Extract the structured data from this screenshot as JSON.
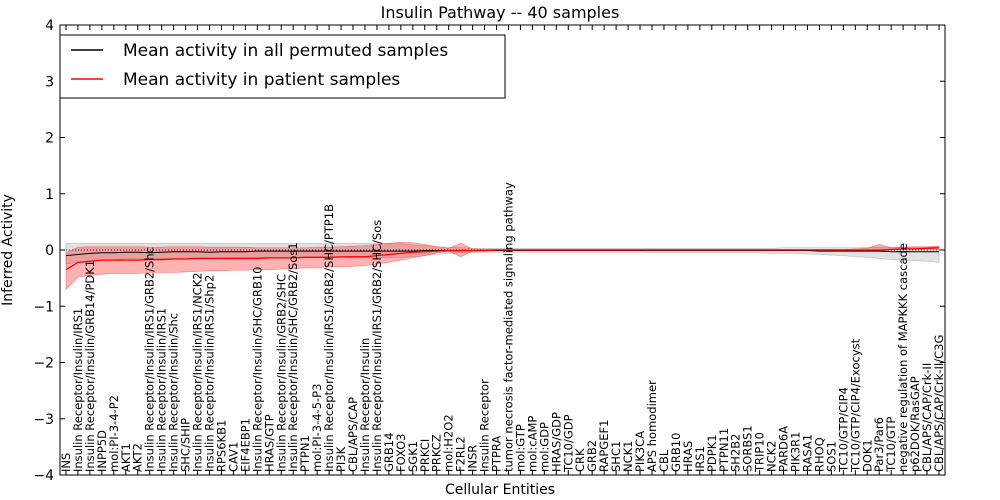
{
  "chart_data": {
    "type": "line",
    "title": "Insulin Pathway -- 40 samples",
    "xlabel": "Cellular Entities",
    "ylabel": "Inferred Activity",
    "ylim": [
      -4,
      4
    ],
    "yticks": [
      "4",
      "3",
      "2",
      "1",
      "0",
      "−1",
      "−2",
      "−3",
      "−4"
    ],
    "ytick_values": [
      4,
      3,
      2,
      1,
      0,
      -1,
      -2,
      -3,
      -4
    ],
    "legend": {
      "placement": "top-left",
      "entries": [
        {
          "label": "Mean activity in all permuted samples",
          "color": "#000000"
        },
        {
          "label": "Mean activity in patient samples",
          "color": "#ff0000"
        }
      ]
    },
    "categories": [
      "INS",
      "Insulin Receptor/Insulin/IRS1",
      "Insulin Receptor/Insulin/GRB14/PDK1",
      "INPP5D",
      "mol:PI-3-4-P2",
      "AKT1",
      "AKT2",
      "Insulin Receptor/Insulin/IRS1/GRB2/Shc",
      "Insulin Receptor/Insulin/IRS1",
      "Insulin Receptor/Insulin/Shc",
      "SHC/SHIP",
      "Insulin Receptor/Insulin/IRS1/NCK2",
      "Insulin Receptor/Insulin/IRS1/Shp2",
      "RPS6KB1",
      "CAV1",
      "EIF4EBP1",
      "Insulin Receptor/Insulin/SHC/GRB10",
      "HRAS/GTP",
      "Insulin Receptor/Insulin/GRB2/SHC",
      "Insulin Receptor/Insulin/SHC/GRB2/Sos1",
      "PTPN1",
      "mol:PI-3-4-5-P3",
      "Insulin Receptor/Insulin/IRS1/GRB2/SHC/PTP1B",
      "PI3K",
      "CBL/APS/CAP",
      "Insulin Receptor/Insulin",
      "Insulin Receptor/Insulin/IRS1/GRB2/SHC/Sos",
      "GRB14",
      "FOXO3",
      "SGK1",
      "PRKCI",
      "PRKCZ",
      "mol:H2O2",
      "F2RL2",
      "INSR",
      "Insulin Receptor",
      "PTPRA",
      "tumor necrosis factor-mediated signaling pathway",
      "mol:GTP",
      "mol:cAMP",
      "mol:GDP",
      "HRAS/GDP",
      "TC10/GDP",
      "CRK",
      "GRB2",
      "RAPGEF1",
      "SHC1",
      "NCK1",
      "PIK3CA",
      "APS homodimer",
      "CBL",
      "GRB10",
      "HRAS",
      "IRS1",
      "PDPK1",
      "PTPN11",
      "SH2B2",
      "SORBS1",
      "TRIP10",
      "NCK2",
      "PARD6A",
      "PIK3R1",
      "RASA1",
      "RHOQ",
      "SOS1",
      "TC10/GTP/CIP4",
      "TC10/GTP/CIP4/Exocyst",
      "DOK1",
      "Par3/Par6",
      "TC10/GTP",
      "negative regulation of MAPKKK cascade",
      "p62DOK/RasGAP",
      "CBL/APS/CAP/Crk-II",
      "CBL/APS/CAP/Crk-II/C3G"
    ],
    "series": [
      {
        "name": "Mean activity in all permuted samples",
        "color": "#000000",
        "values": [
          -0.1,
          -0.08,
          -0.06,
          -0.05,
          -0.05,
          -0.04,
          -0.04,
          -0.05,
          -0.04,
          -0.03,
          -0.03,
          -0.03,
          -0.04,
          -0.03,
          -0.03,
          -0.03,
          -0.02,
          -0.02,
          -0.02,
          -0.02,
          -0.02,
          -0.02,
          -0.02,
          -0.02,
          -0.02,
          -0.02,
          -0.02,
          -0.02,
          -0.02,
          -0.02,
          -0.01,
          -0.01,
          -0.01,
          -0.01,
          -0.01,
          -0.01,
          -0.01,
          -0.01,
          -0.01,
          -0.01,
          -0.01,
          -0.01,
          -0.01,
          -0.01,
          -0.01,
          -0.01,
          -0.01,
          -0.01,
          -0.01,
          -0.01,
          -0.01,
          -0.01,
          -0.01,
          -0.01,
          -0.01,
          -0.01,
          -0.01,
          -0.01,
          -0.01,
          -0.01,
          -0.01,
          -0.01,
          -0.01,
          -0.02,
          -0.02,
          -0.02,
          -0.02,
          -0.02,
          -0.02,
          -0.03,
          -0.03,
          -0.03,
          -0.03,
          -0.03
        ],
        "band_low": [
          -0.25,
          -0.22,
          -0.2,
          -0.18,
          -0.17,
          -0.16,
          -0.16,
          -0.16,
          -0.15,
          -0.15,
          -0.15,
          -0.15,
          -0.15,
          -0.14,
          -0.14,
          -0.14,
          -0.13,
          -0.13,
          -0.13,
          -0.13,
          -0.13,
          -0.13,
          -0.13,
          -0.13,
          -0.14,
          -0.14,
          -0.14,
          -0.14,
          -0.13,
          -0.12,
          -0.1,
          -0.08,
          -0.06,
          -0.05,
          -0.05,
          -0.04,
          -0.04,
          -0.04,
          -0.04,
          -0.04,
          -0.04,
          -0.04,
          -0.04,
          -0.04,
          -0.04,
          -0.04,
          -0.04,
          -0.04,
          -0.04,
          -0.05,
          -0.05,
          -0.05,
          -0.05,
          -0.05,
          -0.05,
          -0.05,
          -0.05,
          -0.05,
          -0.05,
          -0.06,
          -0.06,
          -0.06,
          -0.07,
          -0.08,
          -0.09,
          -0.1,
          -0.12,
          -0.13,
          -0.15,
          -0.17,
          -0.18,
          -0.19,
          -0.2,
          -0.22
        ],
        "band_high": [
          0.12,
          0.12,
          0.12,
          0.12,
          0.12,
          0.12,
          0.12,
          0.12,
          0.12,
          0.12,
          0.12,
          0.12,
          0.12,
          0.12,
          0.12,
          0.12,
          0.12,
          0.12,
          0.12,
          0.12,
          0.12,
          0.12,
          0.12,
          0.12,
          0.12,
          0.12,
          0.12,
          0.12,
          0.11,
          0.09,
          0.08,
          0.06,
          0.05,
          0.04,
          0.03,
          0.03,
          0.03,
          0.03,
          0.03,
          0.03,
          0.03,
          0.03,
          0.03,
          0.03,
          0.03,
          0.03,
          0.03,
          0.03,
          0.03,
          0.03,
          0.03,
          0.03,
          0.03,
          0.03,
          0.03,
          0.03,
          0.03,
          0.03,
          0.03,
          0.03,
          0.04,
          0.04,
          0.04,
          0.04,
          0.04,
          0.04,
          0.04,
          0.05,
          0.05,
          0.05,
          0.05,
          0.05,
          0.05,
          0.05
        ]
      },
      {
        "name": "Mean activity in patient samples",
        "color": "#ff0000",
        "values": [
          -0.35,
          -0.22,
          -0.2,
          -0.18,
          -0.18,
          -0.18,
          -0.18,
          -0.17,
          -0.17,
          -0.16,
          -0.16,
          -0.15,
          -0.15,
          -0.15,
          -0.15,
          -0.15,
          -0.15,
          -0.14,
          -0.14,
          -0.14,
          -0.13,
          -0.13,
          -0.13,
          -0.12,
          -0.12,
          -0.12,
          -0.1,
          -0.08,
          -0.06,
          -0.04,
          -0.03,
          -0.02,
          -0.01,
          -0.01,
          -0.01,
          -0.01,
          0,
          0,
          0,
          0,
          0,
          0,
          0,
          0,
          0,
          0,
          0,
          0,
          0,
          0,
          0,
          0,
          0,
          0,
          0,
          0,
          0,
          0,
          0,
          0,
          0,
          0,
          0,
          0,
          0,
          0,
          0,
          0,
          0,
          0.01,
          0.02,
          0.02,
          0.03,
          0.04
        ],
        "band_low": [
          -0.7,
          -0.48,
          -0.45,
          -0.43,
          -0.42,
          -0.42,
          -0.42,
          -0.4,
          -0.4,
          -0.4,
          -0.39,
          -0.38,
          -0.37,
          -0.37,
          -0.36,
          -0.36,
          -0.35,
          -0.35,
          -0.34,
          -0.33,
          -0.32,
          -0.32,
          -0.3,
          -0.3,
          -0.29,
          -0.28,
          -0.25,
          -0.22,
          -0.18,
          -0.14,
          -0.1,
          -0.05,
          -0.02,
          -0.12,
          -0.02,
          -0.02,
          -0.01,
          -0.01,
          -0.01,
          -0.01,
          -0.01,
          -0.01,
          -0.01,
          -0.01,
          -0.01,
          -0.01,
          -0.01,
          -0.01,
          -0.01,
          -0.01,
          -0.01,
          -0.01,
          -0.01,
          -0.01,
          -0.01,
          -0.01,
          -0.01,
          -0.01,
          -0.01,
          -0.01,
          -0.01,
          -0.01,
          -0.01,
          -0.01,
          -0.01,
          -0.01,
          -0.01,
          -0.01,
          -0.02,
          0,
          0.01,
          0.01,
          0.02,
          0.02
        ],
        "band_high": [
          -0.05,
          0.05,
          0.06,
          0.06,
          0.06,
          0.06,
          0.06,
          0.05,
          0.05,
          0.06,
          0.06,
          0.06,
          0.05,
          0.05,
          0.05,
          0.05,
          0.04,
          0.04,
          0.04,
          0.04,
          0.04,
          0.05,
          0.05,
          0.06,
          0.07,
          0.08,
          0.1,
          0.12,
          0.14,
          0.13,
          0.1,
          0.06,
          0.03,
          0.12,
          0.02,
          0.01,
          0.01,
          0.01,
          0.01,
          0.01,
          0.01,
          0.01,
          0.01,
          0.01,
          0.01,
          0.01,
          0.01,
          0.01,
          0.01,
          0.01,
          0.01,
          0.01,
          0.01,
          0.01,
          0.01,
          0.01,
          0.01,
          0.01,
          0.01,
          0.01,
          0.01,
          0.01,
          0.01,
          0.01,
          0.01,
          0.01,
          0.02,
          0.03,
          0.1,
          0.04,
          0.05,
          0.06,
          0.06,
          0.07
        ]
      }
    ],
    "baseline": 0
  }
}
